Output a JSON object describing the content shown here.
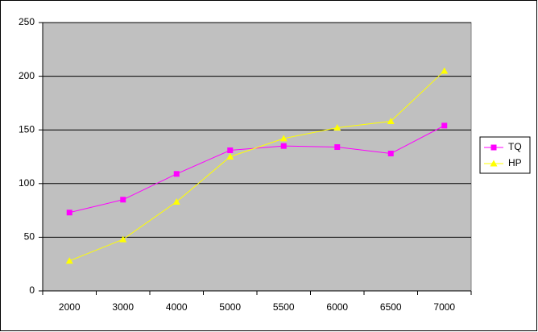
{
  "chart_data": {
    "type": "line",
    "categories": [
      "2000",
      "3000",
      "4000",
      "5000",
      "5500",
      "6000",
      "6500",
      "7000"
    ],
    "series": [
      {
        "name": "TQ",
        "color": "#ff00ff",
        "marker": "square",
        "values": [
          73,
          85,
          109,
          131,
          135,
          134,
          128,
          154
        ]
      },
      {
        "name": "HP",
        "color": "#ffff00",
        "marker": "triangle",
        "values": [
          28,
          48,
          83,
          125,
          142,
          152,
          158,
          205
        ]
      }
    ],
    "ylim": [
      0,
      250
    ],
    "yticks": [
      0,
      50,
      100,
      150,
      200,
      250
    ],
    "grid": true,
    "legend": "right",
    "plot_background": "#c0c0c0"
  }
}
